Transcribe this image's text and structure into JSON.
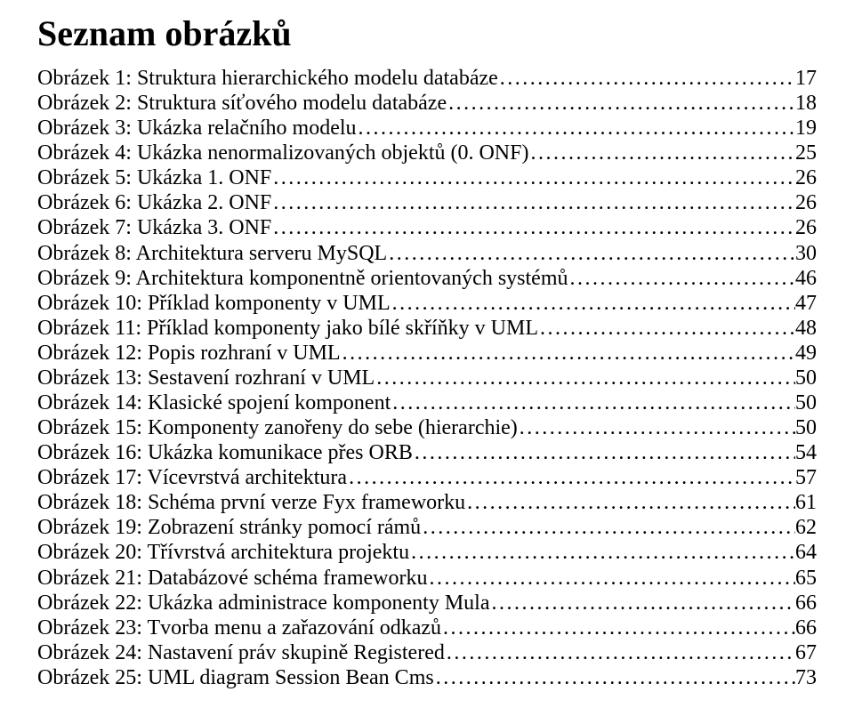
{
  "heading": "Seznam obrázků",
  "dot_fill": "........................................................................................................................................................................................................................................................................................................................",
  "entries": [
    {
      "label": "Obrázek 1: Struktura hierarchického modelu databáze",
      "page": "17"
    },
    {
      "label": "Obrázek 2: Struktura síťového modelu databáze",
      "page": "18"
    },
    {
      "label": "Obrázek 3: Ukázka relačního modelu",
      "page": "19"
    },
    {
      "label": "Obrázek 4: Ukázka nenormalizovaných objektů (0. ONF)",
      "page": "25"
    },
    {
      "label": "Obrázek 5: Ukázka 1. ONF",
      "page": "26"
    },
    {
      "label": "Obrázek 6: Ukázka 2. ONF",
      "page": "26"
    },
    {
      "label": "Obrázek 7: Ukázka 3. ONF",
      "page": "26"
    },
    {
      "label": "Obrázek 8: Architektura serveru MySQL",
      "page": "30"
    },
    {
      "label": "Obrázek 9: Architektura komponentně orientovaných systémů",
      "page": "46"
    },
    {
      "label": "Obrázek 10: Příklad komponenty v UML",
      "page": "47"
    },
    {
      "label": "Obrázek 11: Příklad komponenty jako bílé skříňky v UML",
      "page": "48"
    },
    {
      "label": "Obrázek 12: Popis rozhraní v UML",
      "page": "49"
    },
    {
      "label": "Obrázek 13: Sestavení rozhraní v UML",
      "page": "50"
    },
    {
      "label": "Obrázek 14: Klasické spojení komponent",
      "page": "50"
    },
    {
      "label": "Obrázek 15: Komponenty zanořeny do sebe (hierarchie)",
      "page": "50"
    },
    {
      "label": "Obrázek 16: Ukázka komunikace přes ORB",
      "page": "54"
    },
    {
      "label": "Obrázek 17: Vícevrstvá architektura",
      "page": "57"
    },
    {
      "label": "Obrázek 18: Schéma první verze Fyx frameworku",
      "page": "61"
    },
    {
      "label": "Obrázek 19: Zobrazení stránky pomocí rámů",
      "page": "62"
    },
    {
      "label": "Obrázek 20: Třívrstvá architektura projektu",
      "page": "64"
    },
    {
      "label": "Obrázek 21: Databázové schéma frameworku",
      "page": "65"
    },
    {
      "label": "Obrázek 22: Ukázka administrace komponenty Mula",
      "page": "66"
    },
    {
      "label": "Obrázek 23: Tvorba menu a zařazování odkazů",
      "page": "66"
    },
    {
      "label": "Obrázek 24: Nastavení práv skupině Registered",
      "page": "67"
    },
    {
      "label": "Obrázek 25: UML diagram Session Bean Cms",
      "page": "73"
    }
  ]
}
